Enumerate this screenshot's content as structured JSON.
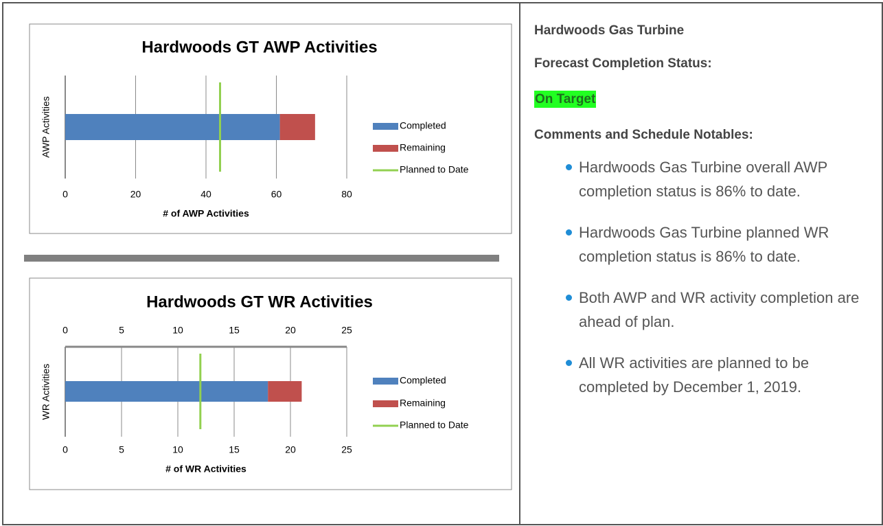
{
  "chart_data": [
    {
      "type": "bar",
      "horizontal": true,
      "stacked": true,
      "title": "Hardwoods GT AWP Activities",
      "xlabel": "# of AWP Activities",
      "ylabel": "AWP Activities",
      "categories": [
        null
      ],
      "series": [
        {
          "name": "Completed",
          "color": "#4f81bd",
          "values": [
            61
          ]
        },
        {
          "name": "Remaining",
          "color": "#c0504d",
          "values": [
            10
          ]
        },
        {
          "name": "Planned to Date",
          "color": "#92d050",
          "values": [
            44
          ],
          "kind": "line"
        }
      ],
      "xlim": [
        0,
        80
      ],
      "xticks": [
        0,
        20,
        40,
        60,
        80
      ],
      "xtick_sides": [
        "bottom"
      ],
      "grid": true,
      "legend": "right"
    },
    {
      "type": "bar",
      "horizontal": true,
      "stacked": true,
      "title": "Hardwoods GT WR Activities",
      "xlabel": "# of WR Activities",
      "ylabel": "WR Activities",
      "categories": [
        null
      ],
      "series": [
        {
          "name": "Completed",
          "color": "#4f81bd",
          "values": [
            18
          ]
        },
        {
          "name": "Remaining",
          "color": "#c0504d",
          "values": [
            3
          ]
        },
        {
          "name": "Planned to Date",
          "color": "#92d050",
          "values": [
            12
          ],
          "kind": "line"
        }
      ],
      "xlim": [
        0,
        25
      ],
      "xticks": [
        0,
        5,
        10,
        15,
        20,
        25
      ],
      "xtick_sides": [
        "top",
        "bottom"
      ],
      "grid": true,
      "legend": "right"
    }
  ],
  "panel": {
    "title": "Hardwoods Gas Turbine",
    "status_label": "Forecast Completion Status:",
    "status": "On Target",
    "comments_label": "Comments and Schedule Notables:",
    "comments": [
      "Hardwoods Gas Turbine overall AWP completion status is 86% to date.",
      "Hardwoods Gas Turbine planned WR completion status is 86% to date.",
      "Both AWP and WR activity completion are ahead of plan.",
      "All WR activities are planned to be completed by December 1, 2019."
    ]
  }
}
